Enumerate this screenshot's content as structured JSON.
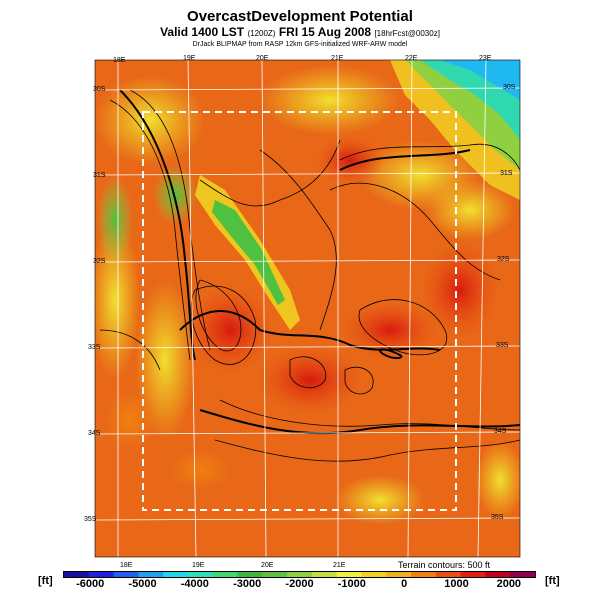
{
  "map": {
    "title": "OvercastDevelopment Potential",
    "subtitle_main": "Valid 1400 LST",
    "subtitle_utc": "(1200Z)",
    "subtitle_date": "FRI 15 Aug 2008",
    "subtitle_fcst": "[18hrFcst@0030z]",
    "credit": "DrJack BLIPMAP from RASP 12km GFS-initialized WRF-ARW model",
    "top_lon_labels": [
      "18E",
      "19E",
      "20E",
      "21E",
      "22E",
      "23E"
    ],
    "bottom_lon_labels": [
      "18E",
      "19E",
      "20E",
      "21E"
    ],
    "left_lat_labels": [
      "30S",
      "31S",
      "32S",
      "33S",
      "34S",
      "35S"
    ],
    "right_lat_labels": [
      "30S",
      "31S",
      "32S",
      "33S",
      "34S",
      "35S"
    ],
    "terrain_note": "Terrain contours: 500 ft"
  },
  "colorbar": {
    "unit_left": "[ft]",
    "unit_right": "[ft]",
    "ticks": [
      "-6000",
      "-5000",
      "-4000",
      "-3000",
      "-2000",
      "-1000",
      "0",
      "1000",
      "2000"
    ],
    "min": -6500,
    "max": 2500,
    "colors": [
      "#1a10a0",
      "#2020e0",
      "#2060f0",
      "#20a0f0",
      "#20d8e8",
      "#30e0b8",
      "#40d870",
      "#40b840",
      "#60c040",
      "#90d040",
      "#c0e040",
      "#f0f040",
      "#f0d020",
      "#f0b020",
      "#f08010",
      "#e85010",
      "#e02010",
      "#c00020",
      "#900050"
    ]
  }
}
